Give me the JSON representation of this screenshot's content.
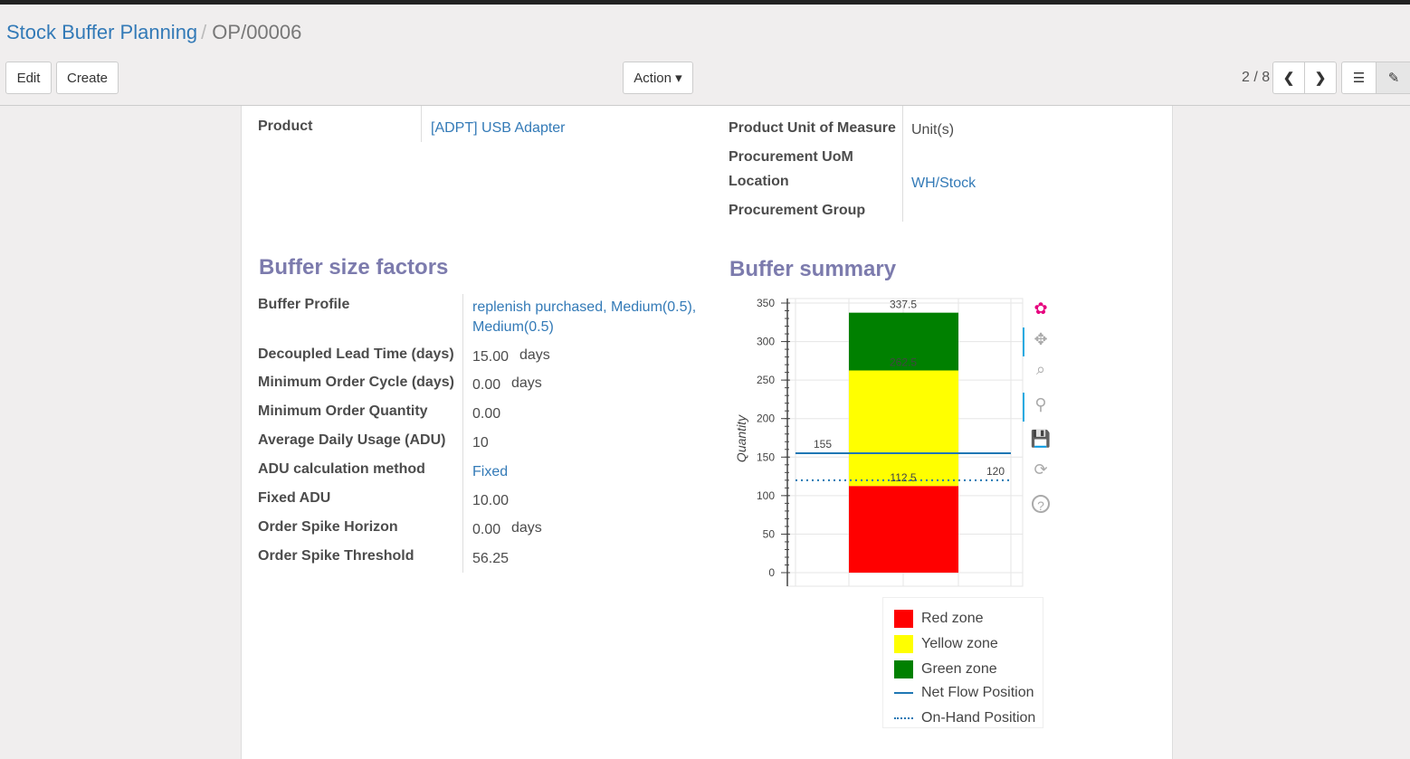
{
  "breadcrumb": {
    "parent": "Stock Buffer Planning",
    "current": "OP/00006"
  },
  "toolbar": {
    "edit": "Edit",
    "create": "Create",
    "action": "Action ▾",
    "pager": "2 / 8"
  },
  "fields_top": {
    "product_label": "Product",
    "product_value": "[ADPT] USB Adapter",
    "uom_label": "Product Unit of Measure",
    "uom_value": "Unit(s)",
    "proc_uom_label": "Procurement UoM",
    "location_label": "Location",
    "location_value": "WH/Stock",
    "proc_group_label": "Procurement Group"
  },
  "buffer_factors": {
    "title": "Buffer size factors",
    "rows": [
      {
        "label": "Buffer Profile",
        "value": "replenish purchased, Medium(0.5),",
        "value2": "Medium(0.5)",
        "link": true
      },
      {
        "label": "Decoupled Lead Time (days)",
        "value": "15.00",
        "unit": "days"
      },
      {
        "label": "Minimum Order Cycle (days)",
        "value": "0.00",
        "unit": "days"
      },
      {
        "label": "Minimum Order Quantity",
        "value": "0.00"
      },
      {
        "label": "Average Daily Usage (ADU)",
        "value": "10"
      },
      {
        "label": "ADU calculation method",
        "value": "Fixed",
        "link": true
      },
      {
        "label": "Fixed ADU",
        "value": "10.00"
      },
      {
        "label": "Order Spike Horizon",
        "value": "0.00",
        "unit": "days"
      },
      {
        "label": "Order Spike Threshold",
        "value": "56.25"
      }
    ]
  },
  "buffer_summary": {
    "title": "Buffer summary"
  },
  "chart_data": {
    "type": "bar",
    "stacked": true,
    "ylabel": "Quantity",
    "ylim": [
      0,
      350
    ],
    "yticks": [
      0,
      50,
      100,
      150,
      200,
      250,
      300,
      350
    ],
    "grid": true,
    "zones": [
      {
        "name": "Red zone",
        "from": 0,
        "to": 112.5,
        "color": "#ff0000"
      },
      {
        "name": "Yellow zone",
        "from": 112.5,
        "to": 262.5,
        "color": "#ffff00"
      },
      {
        "name": "Green zone",
        "from": 262.5,
        "to": 337.5,
        "color": "#008000"
      }
    ],
    "labels": [
      "112.5",
      "262.5",
      "337.5"
    ],
    "lines": [
      {
        "name": "Net Flow Position",
        "value": 155,
        "style": "solid",
        "color": "#1f77b4",
        "label": "155"
      },
      {
        "name": "On-Hand Position",
        "value": 120,
        "style": "dotted",
        "color": "#1f77b4",
        "label": "120"
      }
    ],
    "legend_position": "bottom"
  },
  "tools": [
    "bokeh-logo-icon",
    "pan-icon",
    "box-zoom-icon",
    "wheel-zoom-icon",
    "save-icon",
    "reset-icon",
    "help-icon"
  ]
}
